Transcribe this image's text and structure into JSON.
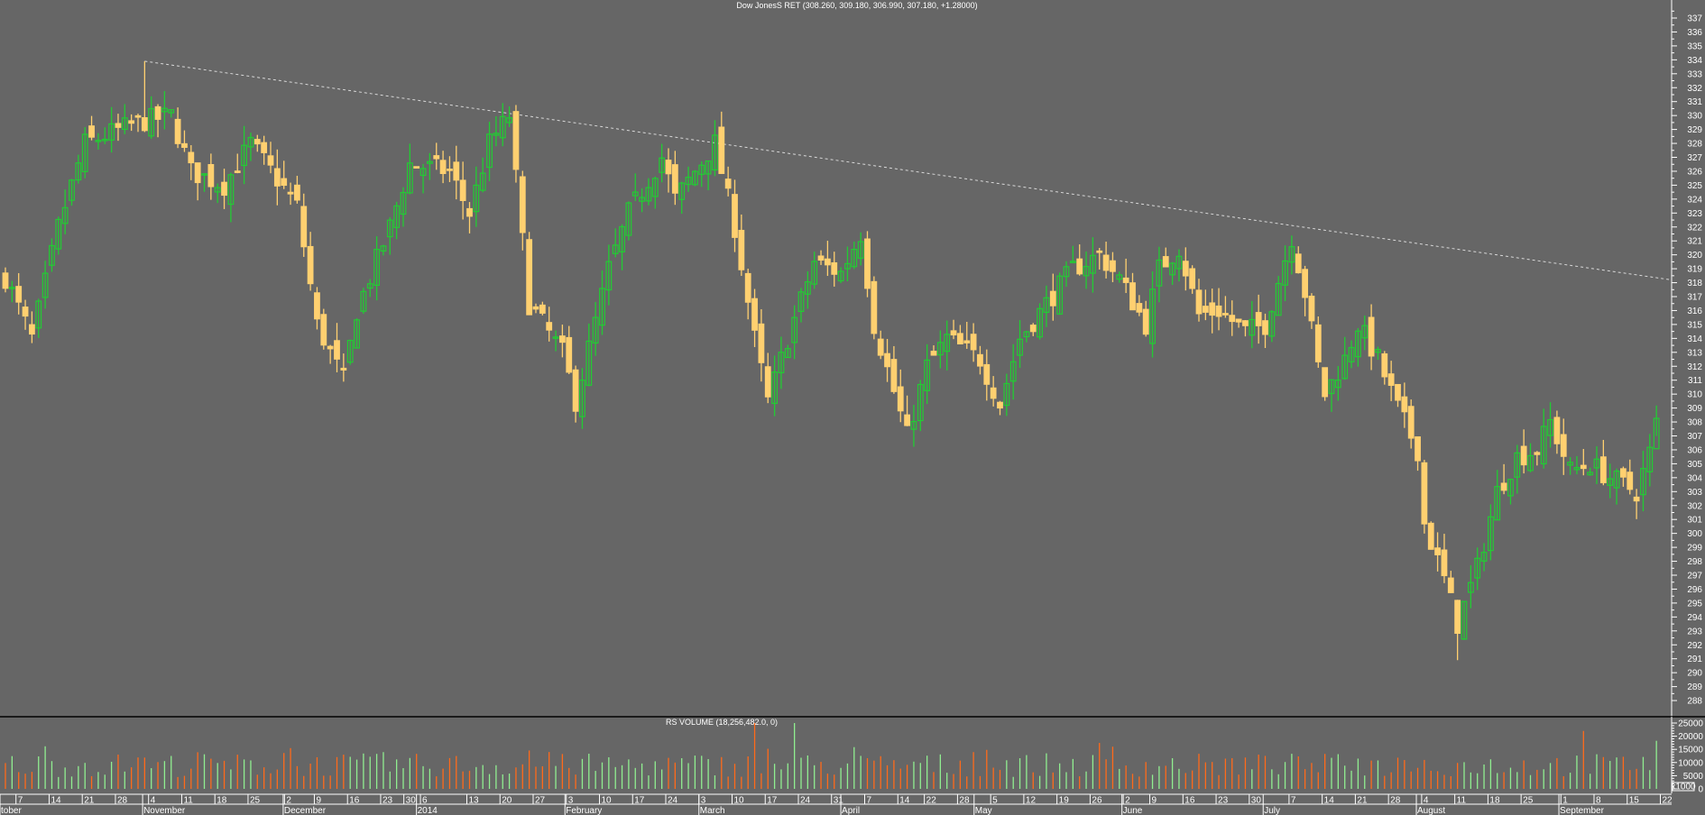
{
  "chart_data": {
    "type": "candlestick",
    "title": "Dow JonesS RET (308.260, 309.180, 306.990, 307.180, +1.28000)",
    "last_bar": {
      "open": 308.26,
      "high": 309.18,
      "low": 306.99,
      "close": 307.18,
      "change": 1.28
    },
    "day_count": 250,
    "price_axis": {
      "min": 288,
      "max": 337,
      "step": 1
    },
    "key_closes": [
      [
        0,
        318.4
      ],
      [
        4,
        314
      ],
      [
        8,
        322
      ],
      [
        10,
        325
      ],
      [
        12,
        328
      ],
      [
        20,
        329.5
      ],
      [
        25,
        330
      ],
      [
        28,
        326
      ],
      [
        33,
        325
      ],
      [
        37,
        328
      ],
      [
        44,
        323.5
      ],
      [
        47,
        315
      ],
      [
        51,
        311
      ],
      [
        53,
        316
      ],
      [
        58,
        322
      ],
      [
        61,
        326.5
      ],
      [
        67,
        326
      ],
      [
        70,
        323
      ],
      [
        73,
        328
      ],
      [
        76,
        330
      ],
      [
        79,
        316.5
      ],
      [
        84,
        313
      ],
      [
        86,
        309.5
      ],
      [
        91,
        319
      ],
      [
        94,
        323
      ],
      [
        99,
        327
      ],
      [
        101,
        324
      ],
      [
        104,
        326
      ],
      [
        107,
        328
      ],
      [
        110,
        322
      ],
      [
        113,
        314
      ],
      [
        115,
        309.5
      ],
      [
        118,
        314
      ],
      [
        122,
        319.5
      ],
      [
        126,
        318.7
      ],
      [
        129,
        321.5
      ],
      [
        131,
        315
      ],
      [
        136,
        307
      ],
      [
        139,
        312
      ],
      [
        142,
        314
      ],
      [
        147,
        312.5
      ],
      [
        150,
        309.3
      ],
      [
        153,
        314
      ],
      [
        157,
        316.5
      ],
      [
        161,
        319
      ],
      [
        165,
        320
      ],
      [
        168,
        318.3
      ],
      [
        172,
        315
      ],
      [
        174,
        319
      ],
      [
        177,
        320.5
      ],
      [
        180,
        315.7
      ],
      [
        183,
        316
      ],
      [
        187,
        314.5
      ],
      [
        190,
        315
      ],
      [
        194,
        321.3
      ],
      [
        196,
        317.3
      ],
      [
        198,
        312
      ],
      [
        199,
        310
      ],
      [
        202,
        312.5
      ],
      [
        204,
        315
      ],
      [
        207,
        312.5
      ],
      [
        210,
        309
      ],
      [
        213,
        306
      ],
      [
        214,
        300.7
      ],
      [
        217,
        296.7
      ],
      [
        219,
        293.5
      ],
      [
        222,
        297.5
      ],
      [
        225,
        303
      ],
      [
        228,
        305.5
      ],
      [
        231,
        306
      ],
      [
        233,
        308
      ],
      [
        236,
        304.5
      ],
      [
        239,
        305
      ],
      [
        242,
        304
      ],
      [
        246,
        303
      ],
      [
        249,
        307.2
      ]
    ],
    "extremes": {
      "high": {
        "day": 21,
        "price": 333.9
      },
      "low": {
        "day": 219,
        "price": 290.9
      }
    },
    "trendline": {
      "start": [
        21,
        333.9
      ],
      "end": [
        251.3,
        318.2
      ],
      "style": "dashed"
    },
    "volume": {
      "title": "RS VOLUME (18,256,482.0, 0)",
      "unit_label": "x1000",
      "axis": {
        "min": 0,
        "max": 25000,
        "labels": [
          "25000",
          "20000",
          "15000",
          "10000",
          "5000",
          "0"
        ]
      },
      "spikes": [
        [
          113,
          25000
        ],
        [
          119,
          25000
        ],
        [
          238,
          22000
        ],
        [
          249,
          18256
        ]
      ]
    },
    "week_labels": [
      [
        "7",
        2
      ],
      [
        "14",
        7
      ],
      [
        "21",
        12
      ],
      [
        "28",
        17
      ],
      [
        "4",
        22
      ],
      [
        "11",
        27
      ],
      [
        "18",
        32
      ],
      [
        "25",
        37
      ],
      [
        "2",
        42.5
      ],
      [
        "9",
        47
      ],
      [
        "16",
        52
      ],
      [
        "23",
        57
      ],
      [
        "30",
        60.5
      ],
      [
        "6",
        63
      ],
      [
        "13",
        70
      ],
      [
        "20",
        75
      ],
      [
        "27",
        80
      ],
      [
        "3",
        85
      ],
      [
        "10",
        90
      ],
      [
        "17",
        95
      ],
      [
        "24",
        100
      ],
      [
        "3",
        105
      ],
      [
        "10",
        110
      ],
      [
        "17",
        115
      ],
      [
        "24",
        120
      ],
      [
        "31",
        125
      ],
      [
        "7",
        130
      ],
      [
        "14",
        135
      ],
      [
        "22",
        139
      ],
      [
        "28",
        144
      ],
      [
        "5",
        149
      ],
      [
        "12",
        154
      ],
      [
        "19",
        159
      ],
      [
        "26",
        164
      ],
      [
        "2",
        169
      ],
      [
        "9",
        173
      ],
      [
        "16",
        178
      ],
      [
        "23",
        183
      ],
      [
        "30",
        188
      ],
      [
        "7",
        194
      ],
      [
        "14",
        199
      ],
      [
        "21",
        204
      ],
      [
        "28",
        209
      ],
      [
        "4",
        214
      ],
      [
        "11",
        219
      ],
      [
        "18",
        224
      ],
      [
        "25",
        229
      ],
      [
        "1",
        235
      ],
      [
        "8",
        240
      ],
      [
        "15",
        245
      ],
      [
        "22",
        250
      ]
    ],
    "month_labels": [
      [
        "tober",
        -0.8
      ],
      [
        "November",
        21.1
      ],
      [
        "December",
        42.3
      ],
      [
        "2014",
        62.4
      ],
      [
        "February",
        84.8
      ],
      [
        "March",
        105
      ],
      [
        "April",
        126.4
      ],
      [
        "May",
        146.5
      ],
      [
        "June",
        168.8
      ],
      [
        "July",
        190.1
      ],
      [
        "August",
        213.2
      ],
      [
        "September",
        234.7
      ]
    ]
  },
  "colors": {
    "background": "#666666",
    "up": "#22cc33",
    "down": "#ffd070",
    "vol_up": "#90ee90",
    "vol_down": "#ff6a1a",
    "axis": "#ffffff",
    "trend": "#d8d8d8"
  }
}
